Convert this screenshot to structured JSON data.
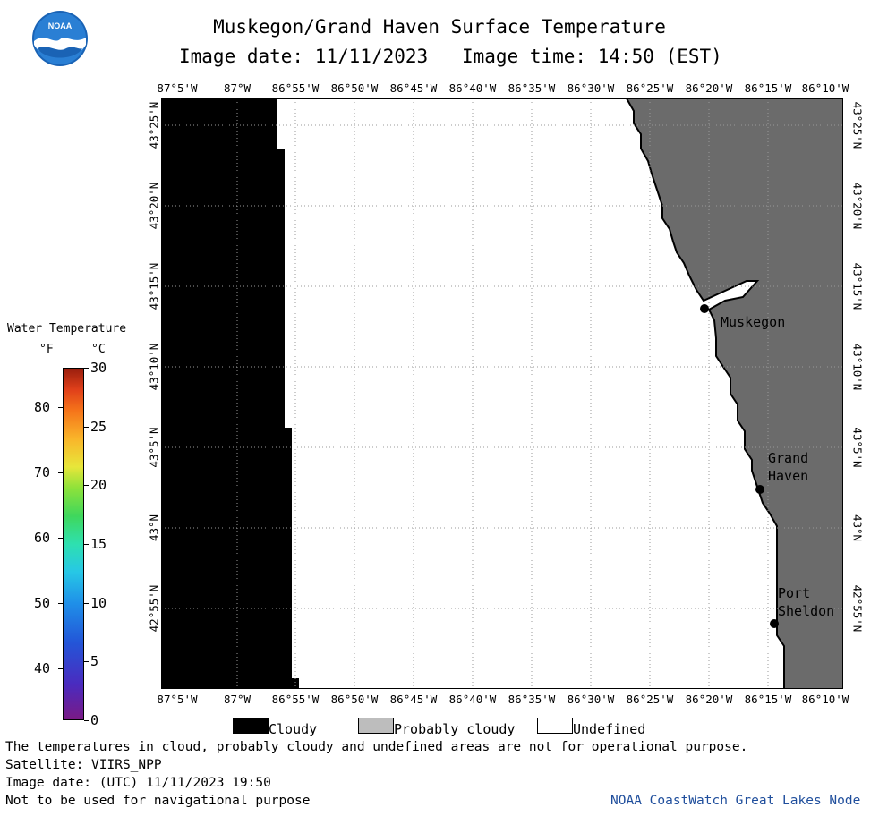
{
  "title": "Muskegon/Grand Haven Surface Temperature",
  "subtitle": {
    "date_label": "Image date: 11/11/2023",
    "time_label": "Image time: 14:50 (EST)"
  },
  "logo_text": "NOAA",
  "longitude_ticks": [
    "87°5'W",
    "87°W",
    "86°55'W",
    "86°50'W",
    "86°45'W",
    "86°40'W",
    "86°35'W",
    "86°30'W",
    "86°25'W",
    "86°20'W",
    "86°15'W",
    "86°10'W"
  ],
  "latitude_ticks": [
    "43°25'N",
    "43°20'N",
    "43°15'N",
    "43°10'N",
    "43°5'N",
    "43°N",
    "42°55'N"
  ],
  "colorbar": {
    "title": "Water Temperature",
    "unit_f": "°F",
    "unit_c": "°C",
    "fahrenheit_ticks": [
      "80",
      "70",
      "60",
      "50",
      "40"
    ],
    "celsius_ticks": [
      "30",
      "25",
      "20",
      "15",
      "10",
      "5",
      "0"
    ],
    "range_c": [
      0,
      30
    ]
  },
  "cities": [
    {
      "lines": [
        "Muskegon"
      ]
    },
    {
      "lines": [
        "Grand",
        "Haven"
      ]
    },
    {
      "lines": [
        "Port",
        "Sheldon"
      ]
    }
  ],
  "key": [
    {
      "label": "Cloudy",
      "color": "#000000"
    },
    {
      "label": "Probably cloudy",
      "color": "#bdbdbd"
    },
    {
      "label": "Undefined",
      "color": "#ffffff"
    }
  ],
  "colors": {
    "land": "#6b6b6b",
    "cloud": "#000000",
    "grid": "#999999"
  },
  "footer": {
    "disclaimer": "The temperatures in cloud, probably cloudy and undefined areas are not for operational purpose.",
    "satellite": "Satellite: VIIRS_NPP",
    "utc_date": "Image date: (UTC) 11/11/2023  19:50",
    "nav_warning": "Not to be used for navigational purpose",
    "credit": "NOAA CoastWatch Great Lakes Node"
  }
}
